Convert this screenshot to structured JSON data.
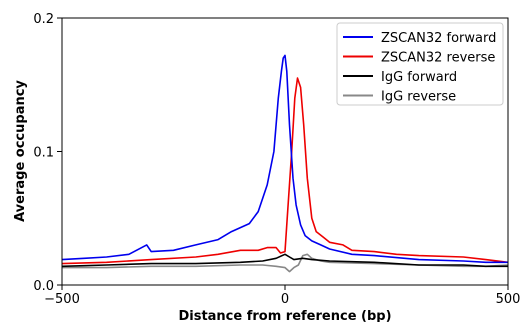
{
  "chart_data": {
    "type": "line",
    "title": "",
    "xlabel": "Distance from reference (bp)",
    "ylabel": "Average occupancy",
    "xlim": [
      -500,
      500
    ],
    "ylim": [
      0,
      0.2
    ],
    "xticks": [
      -500,
      0,
      500
    ],
    "xtick_labels": [
      "−500",
      "0",
      "500"
    ],
    "yticks": [
      0,
      0.1,
      0.2
    ],
    "ytick_labels": [
      "0.0",
      "0.1",
      "0.2"
    ],
    "grid": false,
    "legend_position": "top-right",
    "series": [
      {
        "name": "ZSCAN32 forward",
        "color": "#0000ee",
        "x": [
          -500,
          -450,
          -400,
          -350,
          -310,
          -300,
          -250,
          -200,
          -150,
          -120,
          -80,
          -60,
          -40,
          -25,
          -15,
          -8,
          -4,
          0,
          4,
          10,
          18,
          25,
          35,
          45,
          60,
          80,
          100,
          150,
          200,
          300,
          400,
          450,
          500
        ],
        "y": [
          0.019,
          0.02,
          0.021,
          0.023,
          0.03,
          0.025,
          0.026,
          0.03,
          0.034,
          0.04,
          0.046,
          0.055,
          0.075,
          0.1,
          0.14,
          0.16,
          0.17,
          0.172,
          0.16,
          0.12,
          0.08,
          0.06,
          0.045,
          0.037,
          0.033,
          0.03,
          0.027,
          0.023,
          0.022,
          0.019,
          0.018,
          0.017,
          0.017
        ]
      },
      {
        "name": "ZSCAN32 reverse",
        "color": "#ee0000",
        "x": [
          -500,
          -400,
          -300,
          -200,
          -150,
          -100,
          -60,
          -40,
          -20,
          -10,
          0,
          5,
          15,
          22,
          28,
          35,
          42,
          50,
          60,
          70,
          85,
          100,
          130,
          150,
          200,
          250,
          300,
          400,
          450,
          500
        ],
        "y": [
          0.016,
          0.017,
          0.019,
          0.021,
          0.023,
          0.026,
          0.026,
          0.028,
          0.028,
          0.024,
          0.025,
          0.05,
          0.1,
          0.14,
          0.155,
          0.148,
          0.12,
          0.08,
          0.05,
          0.04,
          0.036,
          0.032,
          0.03,
          0.026,
          0.025,
          0.023,
          0.022,
          0.021,
          0.019,
          0.017
        ]
      },
      {
        "name": "IgG forward",
        "color": "#000000",
        "x": [
          -500,
          -400,
          -300,
          -200,
          -100,
          -50,
          -20,
          0,
          10,
          20,
          40,
          60,
          100,
          200,
          300,
          400,
          450,
          500
        ],
        "y": [
          0.014,
          0.015,
          0.016,
          0.016,
          0.017,
          0.018,
          0.02,
          0.023,
          0.021,
          0.019,
          0.02,
          0.019,
          0.018,
          0.017,
          0.015,
          0.015,
          0.014,
          0.014
        ]
      },
      {
        "name": "IgG reverse",
        "color": "#888888",
        "x": [
          -500,
          -400,
          -300,
          -200,
          -100,
          -50,
          -20,
          0,
          10,
          20,
          30,
          40,
          50,
          60,
          80,
          100,
          200,
          300,
          400,
          450,
          500
        ],
        "y": [
          0.013,
          0.013,
          0.014,
          0.014,
          0.015,
          0.015,
          0.014,
          0.013,
          0.01,
          0.013,
          0.015,
          0.022,
          0.023,
          0.02,
          0.018,
          0.017,
          0.016,
          0.015,
          0.014,
          0.014,
          0.015
        ]
      }
    ]
  }
}
